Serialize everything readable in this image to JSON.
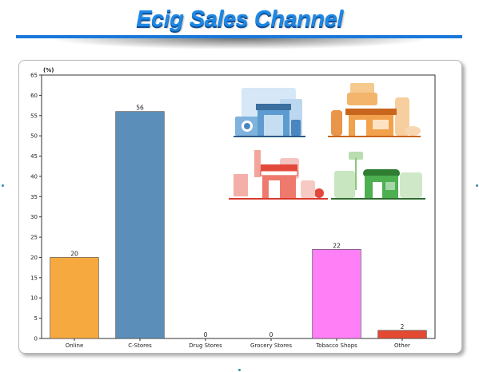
{
  "title": "Ecig Sales Channel",
  "colors": {
    "title": "#1e88e5",
    "title_bar": "#1a78d8"
  },
  "icons": [
    "electronics-store-icon",
    "food-store-icon",
    "gift-shop-icon",
    "garden-store-icon"
  ],
  "chart_data": {
    "type": "bar",
    "unit_label": "(%)",
    "categories": [
      "Online",
      "C-Stores",
      "Drug Stores",
      "Grocery Stores",
      "Tobacco Shops",
      "Other"
    ],
    "values": [
      20,
      56,
      0,
      0,
      22,
      2
    ],
    "data_labels": [
      "20",
      "56",
      "0",
      "0",
      "22",
      "2"
    ],
    "colors": [
      "#f5a93e",
      "#5b8fb9",
      "#9e9e9e",
      "#9e9e9e",
      "#ff7ff7",
      "#e34a33"
    ],
    "ylim": [
      0,
      65
    ],
    "yticks": [
      0,
      5,
      10,
      15,
      20,
      25,
      30,
      35,
      40,
      45,
      50,
      55,
      60,
      65
    ],
    "grid": false,
    "legend": "none"
  }
}
